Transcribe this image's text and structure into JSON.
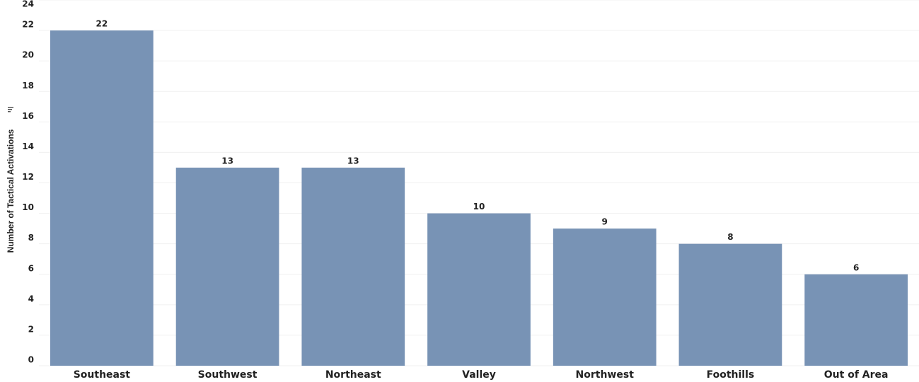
{
  "chart_data": {
    "type": "bar",
    "y_label": "Number of Tactical Activations",
    "categories": [
      "Southeast",
      "Southwest",
      "Northeast",
      "Valley",
      "Northwest",
      "Foothills",
      "Out of Area"
    ],
    "values": [
      22,
      13,
      13,
      10,
      9,
      8,
      6
    ],
    "color": "#7893b5",
    "ylim": [
      0,
      24
    ],
    "yticks": [
      0,
      2,
      4,
      6,
      8,
      10,
      12,
      14,
      16,
      18,
      20,
      22,
      24
    ],
    "grid": true
  }
}
